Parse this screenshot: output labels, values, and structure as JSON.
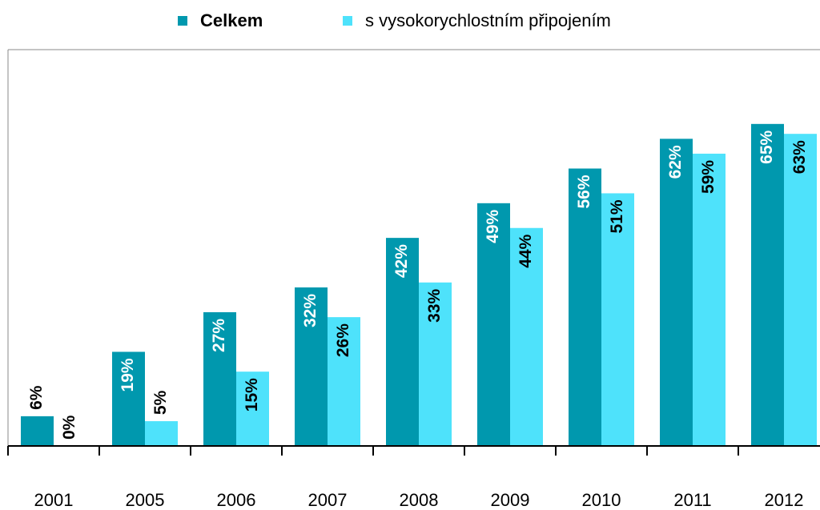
{
  "chart_data": {
    "type": "bar",
    "categories": [
      "2001",
      "2005",
      "2006",
      "2007",
      "2008",
      "2009",
      "2010",
      "2011",
      "2012"
    ],
    "series": [
      {
        "name": "Celkem",
        "color": "#0098ae",
        "values": [
          6,
          19,
          27,
          32,
          42,
          49,
          56,
          62,
          65
        ],
        "value_labels": [
          "6%",
          "19%",
          "27%",
          "32%",
          "42%",
          "49%",
          "56%",
          "62%",
          "65%"
        ]
      },
      {
        "name": "s vysokorychlostním připojením",
        "color": "#4ee2fb",
        "values": [
          0,
          5,
          15,
          26,
          33,
          44,
          51,
          59,
          63
        ],
        "value_labels": [
          "0%",
          "5%",
          "15%",
          "26%",
          "33%",
          "44%",
          "51%",
          "59%",
          "63%"
        ]
      }
    ],
    "ylim": [
      0,
      80
    ],
    "legend": "top",
    "grid": false
  }
}
